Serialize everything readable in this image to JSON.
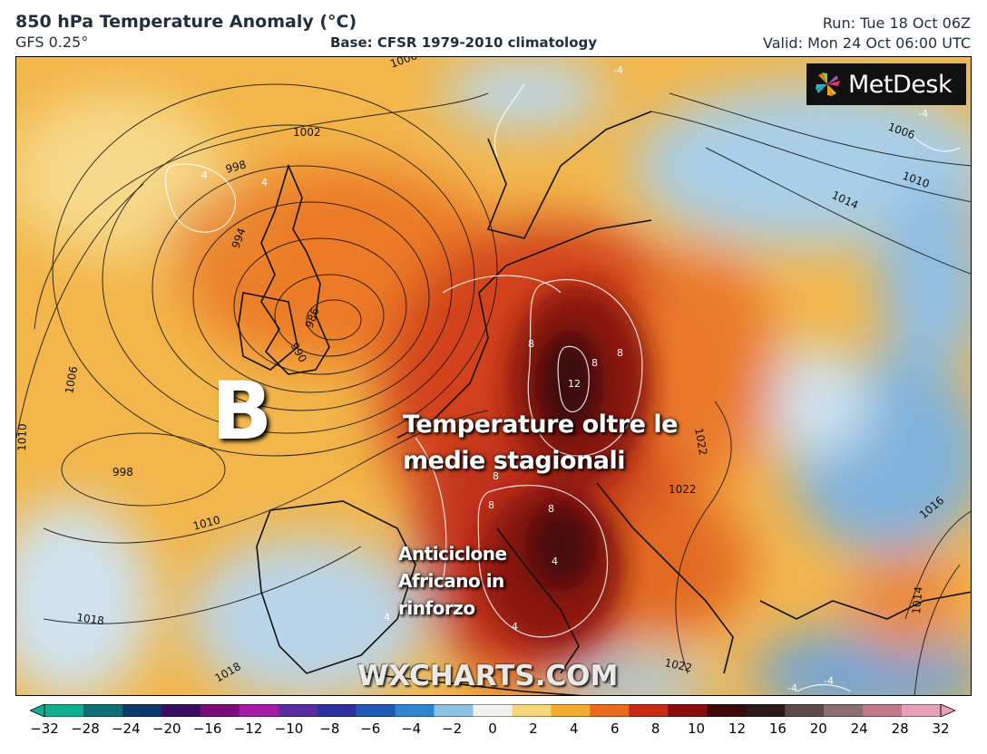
{
  "header": {
    "title": "850 hPa Temperature Anomaly (°C)",
    "model": "GFS 0.25°",
    "base": "Base: CFSR 1979-2010 climatology",
    "run": "Run: Tue 18 Oct 06Z",
    "valid": "Valid: Mon 24 Oct 06:00 UTC"
  },
  "logo": {
    "text": "MetDesk",
    "icon": "metdesk-pinwheel-icon"
  },
  "annotations": {
    "low_marker": "B",
    "line1": "Temperature oltre le",
    "line2": "medie stagionali",
    "anticyclone1": "Anticiclone",
    "anticyclone2": "Africano in",
    "anticyclone3": "rinforzo"
  },
  "watermark": "WXCHARTS.COM",
  "isobar_labels": [
    "1006",
    "1002",
    "998",
    "994",
    "990",
    "986",
    "1006",
    "1010",
    "998",
    "1010",
    "1018",
    "1018",
    "1022",
    "1022",
    "1022",
    "1006",
    "1010",
    "1014",
    "1014",
    "1016"
  ],
  "anomaly_labels": [
    "4",
    "4",
    "-4",
    "-4",
    "12",
    "8",
    "8",
    "8",
    "8",
    "8",
    "8",
    "4",
    "4",
    "4",
    "-4",
    "-4"
  ],
  "colorbar": {
    "ticks": [
      "−32",
      "−28",
      "−24",
      "−20",
      "−16",
      "−12",
      "−10",
      "−8",
      "−6",
      "−4",
      "−2",
      "0",
      "2",
      "4",
      "6",
      "8",
      "10",
      "12",
      "16",
      "20",
      "24",
      "28",
      "32"
    ],
    "colors": [
      "#0fae8e",
      "#0b6f75",
      "#0d3a6a",
      "#3b0d63",
      "#7a0d7a",
      "#a61aa6",
      "#5a2ca0",
      "#2b2fa0",
      "#1f5ab8",
      "#2f86d0",
      "#8fc0e6",
      "#f2f2ee",
      "#f6d778",
      "#f3aa30",
      "#ea6a1e",
      "#c92a14",
      "#8a0d0d",
      "#3c0a0a",
      "#2a1a1a",
      "#5e4a4a",
      "#8c6e6e",
      "#c07a8a",
      "#e8a0b8"
    ]
  }
}
